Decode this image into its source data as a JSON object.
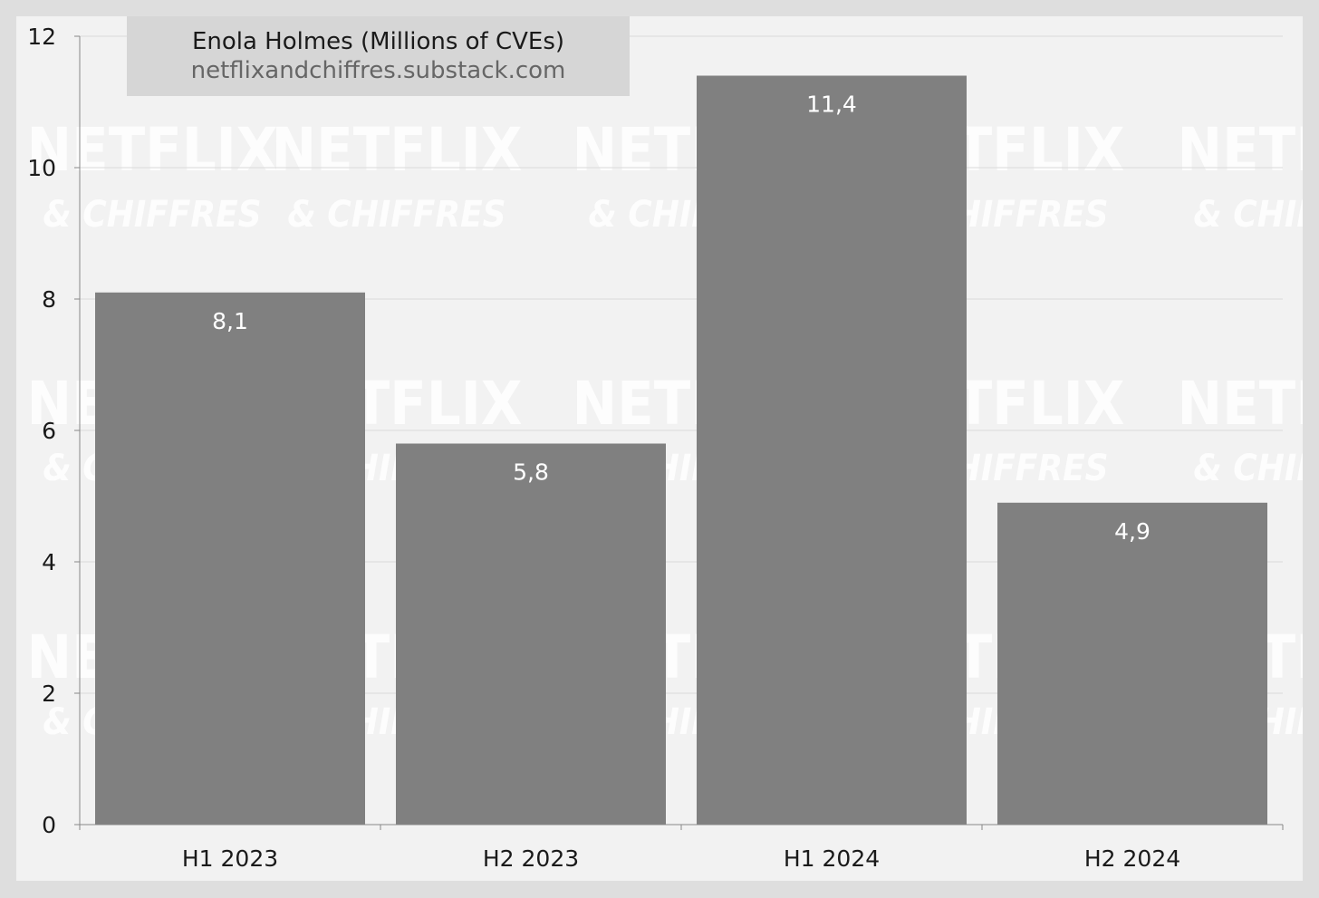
{
  "chart_data": {
    "type": "bar",
    "title": "Enola Holmes (Millions of CVEs)",
    "subtitle": "netflixandchiffres.substack.com",
    "categories": [
      "H1 2023",
      "H2 2023",
      "H1 2024",
      "H2 2024"
    ],
    "values": [
      8.1,
      5.8,
      11.4,
      4.9
    ],
    "data_labels": [
      "8,1",
      "5,8",
      "11,4",
      "4,9"
    ],
    "ylim": [
      0,
      12
    ],
    "yticks": [
      0,
      2,
      4,
      6,
      8,
      10,
      12
    ],
    "xlabel": "",
    "ylabel": "",
    "grid": true,
    "legend": "none",
    "colors": {
      "bar": "#808080",
      "background": "#f2f2f2",
      "frame": "#dedede",
      "grid": "#d9d9d9",
      "axis": "#888888",
      "data_label": "#ffffff",
      "tick_label": "#1a1a1a"
    },
    "watermark": {
      "line1": "NETFLIX",
      "line2": "& CHIFFRES"
    }
  }
}
